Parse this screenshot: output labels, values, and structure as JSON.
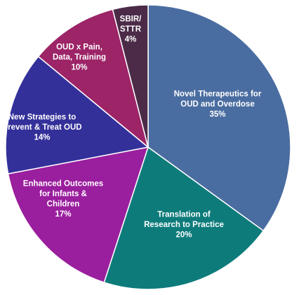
{
  "chart_data": {
    "type": "pie",
    "title": "",
    "slices": [
      {
        "lines": [
          "Novel Therapeutics for",
          "OUD and Overdose"
        ],
        "pct_label": "35%",
        "value": 35,
        "color": "#4a6da1"
      },
      {
        "lines": [
          "Translation of",
          "Research to Practice"
        ],
        "pct_label": "20%",
        "value": 20,
        "color": "#0e7b7b"
      },
      {
        "lines": [
          "Enhanced Outcomes",
          "for Infants &",
          "Children"
        ],
        "pct_label": "17%",
        "value": 17,
        "color": "#9a1f9e"
      },
      {
        "lines": [
          "New Strategies to",
          "Prevent & Treat OUD"
        ],
        "pct_label": "14%",
        "value": 14,
        "color": "#34309a"
      },
      {
        "lines": [
          "OUD x Pain,",
          "Data, Training"
        ],
        "pct_label": "10%",
        "value": 10,
        "color": "#9c2467"
      },
      {
        "lines": [
          "SBIR/",
          "STTR"
        ],
        "pct_label": "4%",
        "value": 4,
        "color": "#4b2b48"
      }
    ]
  }
}
